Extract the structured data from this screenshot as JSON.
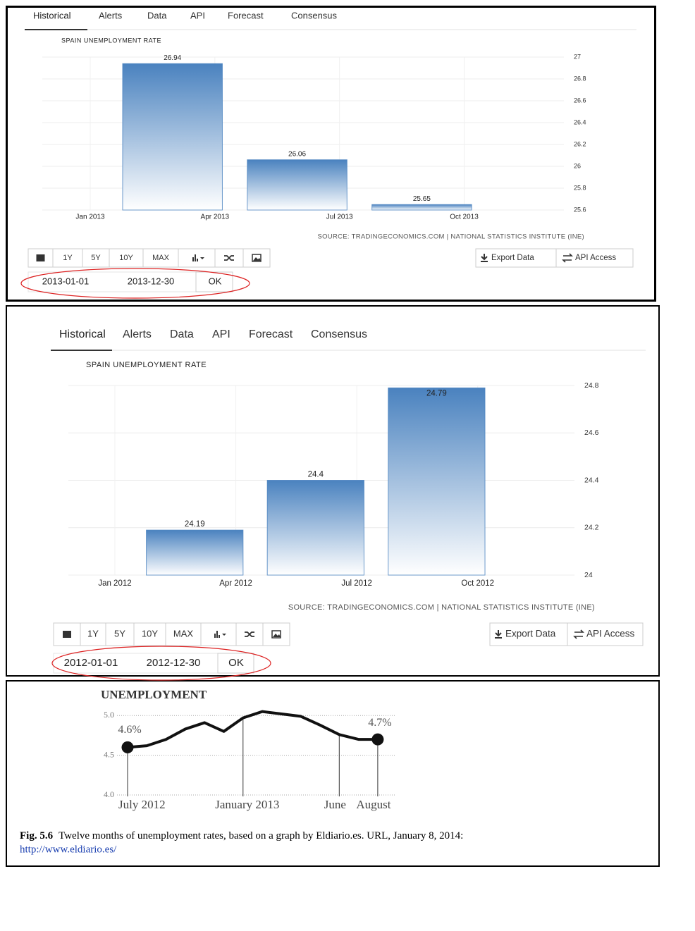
{
  "panels": [
    {
      "tabs": [
        "Historical",
        "Alerts",
        "Data",
        "API",
        "Forecast",
        "Consensus"
      ],
      "range_buttons": [
        "1Y",
        "5Y",
        "10Y",
        "MAX"
      ],
      "export": "Export Data",
      "api_access": "API Access",
      "start_date": "2013-01-01",
      "end_date": "2013-12-30",
      "ok": "OK"
    },
    {
      "tabs": [
        "Historical",
        "Alerts",
        "Data",
        "API",
        "Forecast",
        "Consensus"
      ],
      "range_buttons": [
        "1Y",
        "5Y",
        "10Y",
        "MAX"
      ],
      "export": "Export Data",
      "api_access": "API Access",
      "start_date": "2012-01-01",
      "end_date": "2012-12-30",
      "ok": "OK"
    }
  ],
  "chart_data": [
    {
      "type": "bar",
      "title": "SPAIN UNEMPLOYMENT RATE",
      "xticklabels": [
        "Jan 2013",
        "Apr 2013",
        "Jul 2013",
        "Oct 2013"
      ],
      "categories": [
        null,
        null,
        null
      ],
      "values": [
        26.94,
        26.06,
        25.65
      ],
      "color": "#4a82bf",
      "ylim": [
        25.6,
        27
      ],
      "yticks": [
        25.6,
        25.8,
        26,
        26.2,
        26.4,
        26.6,
        26.8,
        27
      ],
      "grid": true,
      "source": "SOURCE: TRADINGECONOMICS.COM | NATIONAL STATISTICS INSTITUTE (INE)"
    },
    {
      "type": "bar",
      "title": "SPAIN UNEMPLOYMENT RATE",
      "xticklabels": [
        "Jan 2012",
        "Apr 2012",
        "Jul 2012",
        "Oct 2012"
      ],
      "categories": [
        null,
        null,
        null
      ],
      "values": [
        24.19,
        24.4,
        24.79
      ],
      "color": "#4a82bf",
      "ylim": [
        24,
        24.8
      ],
      "yticks": [
        24,
        24.2,
        24.4,
        24.6,
        24.8
      ],
      "grid": true,
      "source": "SOURCE: TRADINGECONOMICS.COM | NATIONAL STATISTICS INSTITUTE (INE)"
    },
    {
      "type": "line",
      "title": "UNEMPLOYMENT",
      "categories": [
        "July 2012",
        null,
        null,
        null,
        null,
        null,
        "January 2013",
        null,
        null,
        null,
        null,
        "June",
        null,
        "August"
      ],
      "values": [
        4.6,
        4.62,
        4.7,
        4.83,
        4.91,
        4.8,
        4.97,
        5.05,
        5.02,
        4.99,
        4.88,
        4.76,
        4.7,
        4.7
      ],
      "value_labels": [
        "4.6%",
        null,
        null,
        null,
        null,
        null,
        null,
        null,
        null,
        null,
        null,
        null,
        null,
        "4.7%"
      ],
      "color": "#111111",
      "ylim": [
        4,
        5.1
      ],
      "yticks": [
        {
          "value": 4,
          "label": "4.0"
        },
        4.5,
        {
          "value": 5,
          "label": "5.0"
        }
      ],
      "grid": true
    }
  ],
  "caption": {
    "label": "Fig. 5.6",
    "text": "Twelve months of unemployment rates, based on a graph by Eldiario.es. URL, January 8, 2014:",
    "url": "http://www.eldiario.es/"
  }
}
